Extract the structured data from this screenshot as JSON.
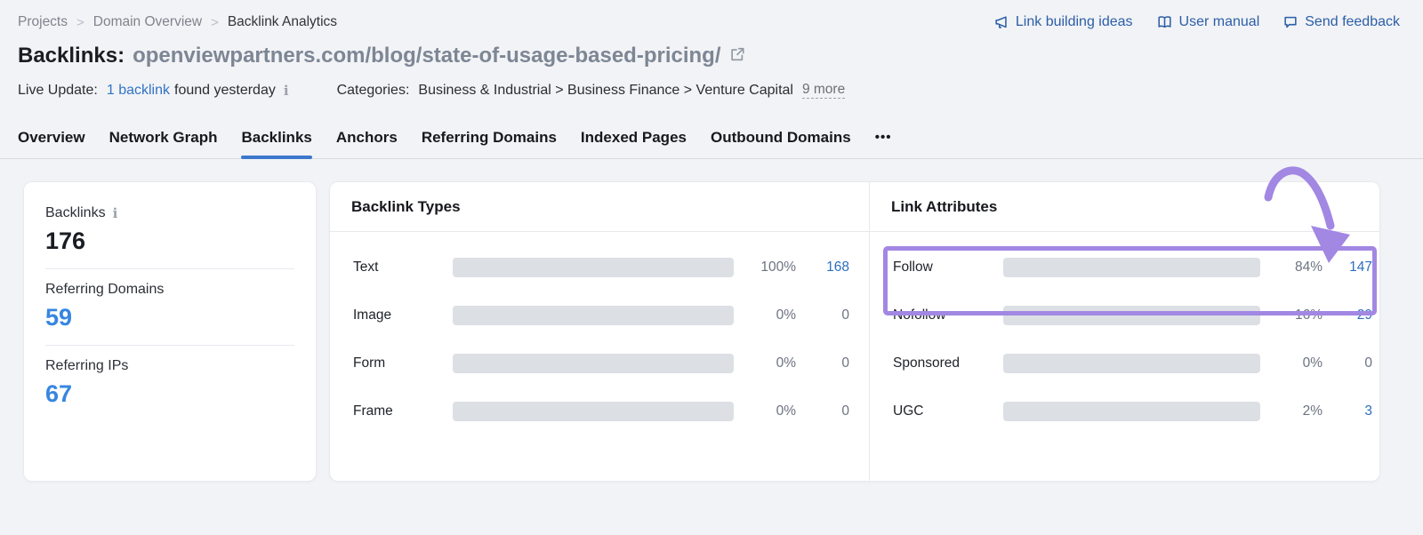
{
  "breadcrumb": {
    "items": [
      "Projects",
      "Domain Overview",
      "Backlink Analytics"
    ]
  },
  "quick_links": [
    {
      "icon": "megaphone-icon",
      "label": "Link building ideas"
    },
    {
      "icon": "book-icon",
      "label": "User manual"
    },
    {
      "icon": "chat-icon",
      "label": "Send feedback"
    }
  ],
  "title": {
    "label": "Backlinks:",
    "url": "openviewpartners.com/blog/state-of-usage-based-pricing/"
  },
  "meta": {
    "live_label": "Live Update:",
    "live_link": "1 backlink",
    "live_suffix": "found yesterday",
    "categories_label": "Categories:",
    "categories_path": "Business & Industrial > Business Finance > Venture Capital",
    "more_link": "9 more"
  },
  "tabs": {
    "items": [
      {
        "label": "Overview",
        "active": false
      },
      {
        "label": "Network Graph",
        "active": false
      },
      {
        "label": "Backlinks",
        "active": true
      },
      {
        "label": "Anchors",
        "active": false
      },
      {
        "label": "Referring Domains",
        "active": false
      },
      {
        "label": "Indexed Pages",
        "active": false
      },
      {
        "label": "Outbound Domains",
        "active": false
      }
    ],
    "more": "•••"
  },
  "summary": {
    "cards": [
      {
        "label": "Backlinks",
        "value": "176"
      },
      {
        "label": "Referring Domains",
        "value": "59"
      },
      {
        "label": "Referring IPs",
        "value": "67"
      }
    ]
  },
  "backlink_types": {
    "title": "Backlink Types",
    "rows": [
      {
        "label": "Text",
        "percent": "100%",
        "count": "168",
        "fill": 100,
        "color": "#55a6f0"
      },
      {
        "label": "Image",
        "percent": "0%",
        "count": "0",
        "fill": 0,
        "color": "#55a6f0"
      },
      {
        "label": "Form",
        "percent": "0%",
        "count": "0",
        "fill": 0,
        "color": "#55a6f0"
      },
      {
        "label": "Frame",
        "percent": "0%",
        "count": "0",
        "fill": 0,
        "color": "#55a6f0"
      }
    ]
  },
  "link_attributes": {
    "title": "Link Attributes",
    "rows": [
      {
        "label": "Follow",
        "percent": "84%",
        "count": "147",
        "fill": 100,
        "color": "#4db186"
      },
      {
        "label": "Nofollow",
        "percent": "16%",
        "count": "29",
        "fill": 19,
        "color": "#55a6f0"
      },
      {
        "label": "Sponsored",
        "percent": "0%",
        "count": "0",
        "fill": 0,
        "color": "#55a6f0"
      },
      {
        "label": "UGC",
        "percent": "2%",
        "count": "3",
        "fill": 2.5,
        "color": "#55a6f0"
      }
    ]
  },
  "colors": {
    "accent_blue": "#55a6f0",
    "green": "#4db186",
    "link_blue": "#2e6fbe",
    "highlight_purple": "#a287e3"
  }
}
